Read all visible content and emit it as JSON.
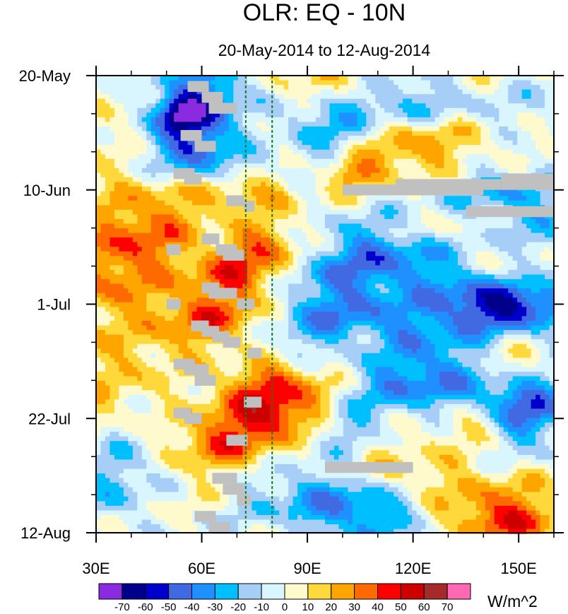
{
  "chart_data": {
    "type": "heatmap",
    "title": "OLR: EQ - 10N",
    "subtitle": "20-May-2014 to 12-Aug-2014",
    "units": "W/m^2",
    "x_range": [
      30,
      160
    ],
    "x_ticks": [
      {
        "value": 30,
        "label": "30E"
      },
      {
        "value": 60,
        "label": "60E"
      },
      {
        "value": 90,
        "label": "90E"
      },
      {
        "value": 120,
        "label": "120E"
      },
      {
        "value": 150,
        "label": "150E"
      }
    ],
    "x_minor_ticks": [
      40,
      50,
      70,
      80,
      100,
      110,
      130,
      140,
      160
    ],
    "y_range_days": [
      0,
      84
    ],
    "y_ticks": [
      {
        "value": 0,
        "label": "20-May"
      },
      {
        "value": 21,
        "label": "10-Jun"
      },
      {
        "value": 42,
        "label": "1-Jul"
      },
      {
        "value": 63,
        "label": "22-Jul"
      },
      {
        "value": 84,
        "label": "12-Aug"
      }
    ],
    "y_minor_ticks": [
      7,
      14,
      28,
      35,
      49,
      56,
      70,
      77
    ],
    "reference_lines_lon": [
      72.5,
      80
    ],
    "colorbar": {
      "levels": [
        -70,
        -60,
        -50,
        -40,
        -30,
        -20,
        -10,
        0,
        10,
        20,
        30,
        40,
        50,
        60,
        70
      ],
      "labels": [
        "-70",
        "-60",
        "-50",
        "-40",
        "-30",
        "-20",
        "-10",
        "0",
        "10",
        "20",
        "30",
        "40",
        "50",
        "60",
        "70"
      ],
      "colors": [
        "#8a2be2",
        "#00008b",
        "#0000cd",
        "#4169e1",
        "#1e90ff",
        "#00bfff",
        "#a6cef7",
        "#d9f6ff",
        "#fffacd",
        "#ffd93b",
        "#ffa500",
        "#ff6a00",
        "#ff0000",
        "#cd0000",
        "#a52a2a",
        "#ff69b4"
      ]
    },
    "missing_color": "#c0c0c0",
    "missing_blocks": [
      {
        "lon": [
          50,
          54
        ],
        "day": [
          31,
          33
        ]
      },
      {
        "lon": [
          50,
          54
        ],
        "day": [
          41,
          43
        ]
      },
      {
        "lon": [
          56,
          62
        ],
        "day": [
          1,
          3
        ]
      },
      {
        "lon": [
          60,
          66
        ],
        "day": [
          3,
          5
        ]
      },
      {
        "lon": [
          62,
          70
        ],
        "day": [
          5,
          7
        ]
      },
      {
        "lon": [
          54,
          60
        ],
        "day": [
          10,
          12
        ]
      },
      {
        "lon": [
          58,
          64
        ],
        "day": [
          12,
          14
        ]
      },
      {
        "lon": [
          52,
          58
        ],
        "day": [
          17,
          19
        ]
      },
      {
        "lon": [
          55,
          60
        ],
        "day": [
          18,
          20
        ]
      },
      {
        "lon": [
          67,
          72
        ],
        "day": [
          22,
          24
        ]
      },
      {
        "lon": [
          72,
          75
        ],
        "day": [
          23,
          25
        ]
      },
      {
        "lon": [
          60,
          65
        ],
        "day": [
          29,
          31
        ]
      },
      {
        "lon": [
          64,
          70
        ],
        "day": [
          31,
          33
        ]
      },
      {
        "lon": [
          66,
          72
        ],
        "day": [
          32,
          34
        ]
      },
      {
        "lon": [
          60,
          65
        ],
        "day": [
          38,
          40
        ]
      },
      {
        "lon": [
          62,
          70
        ],
        "day": [
          39,
          41
        ]
      },
      {
        "lon": [
          70,
          75
        ],
        "day": [
          41,
          43
        ]
      },
      {
        "lon": [
          57,
          62
        ],
        "day": [
          45,
          47
        ]
      },
      {
        "lon": [
          60,
          65
        ],
        "day": [
          46,
          48
        ]
      },
      {
        "lon": [
          63,
          68
        ],
        "day": [
          47,
          49
        ]
      },
      {
        "lon": [
          66,
          71
        ],
        "day": [
          48,
          50
        ]
      },
      {
        "lon": [
          73,
          77
        ],
        "day": [
          50,
          52
        ]
      },
      {
        "lon": [
          52,
          58
        ],
        "day": [
          52,
          54
        ]
      },
      {
        "lon": [
          55,
          62
        ],
        "day": [
          53,
          55
        ]
      },
      {
        "lon": [
          58,
          64
        ],
        "day": [
          55,
          57
        ]
      },
      {
        "lon": [
          72,
          77
        ],
        "day": [
          59,
          61
        ]
      },
      {
        "lon": [
          52,
          57
        ],
        "day": [
          61,
          63
        ]
      },
      {
        "lon": [
          55,
          60
        ],
        "day": [
          62,
          64
        ]
      },
      {
        "lon": [
          67,
          73
        ],
        "day": [
          66,
          68
        ]
      },
      {
        "lon": [
          63,
          70
        ],
        "day": [
          73,
          75
        ]
      },
      {
        "lon": [
          66,
          72
        ],
        "day": [
          75,
          77
        ]
      },
      {
        "lon": [
          70,
          74
        ],
        "day": [
          77,
          79
        ]
      },
      {
        "lon": [
          58,
          64
        ],
        "day": [
          80,
          82
        ]
      },
      {
        "lon": [
          62,
          68
        ],
        "day": [
          82,
          84
        ]
      },
      {
        "lon": [
          100,
          140
        ],
        "day": [
          20,
          22
        ]
      },
      {
        "lon": [
          115,
          145
        ],
        "day": [
          19,
          21
        ]
      },
      {
        "lon": [
          145,
          160
        ],
        "day": [
          18,
          21
        ]
      },
      {
        "lon": [
          135,
          160
        ],
        "day": [
          24,
          26
        ]
      },
      {
        "lon": [
          95,
          120
        ],
        "day": [
          71,
          73
        ]
      }
    ],
    "features": [
      {
        "kind": "warm",
        "lon": 32,
        "day": 42,
        "sx": 10,
        "sy": 22,
        "amp": 18
      },
      {
        "kind": "warm",
        "lon": 48,
        "day": 32,
        "sx": 12,
        "sy": 9,
        "amp": 28
      },
      {
        "kind": "warm",
        "lon": 78,
        "day": 31,
        "sx": 10,
        "sy": 3.5,
        "amp": 42
      },
      {
        "kind": "warm",
        "lon": 70,
        "day": 37,
        "sx": 9,
        "sy": 3,
        "amp": 34
      },
      {
        "kind": "warm",
        "lon": 66,
        "day": 45,
        "sx": 12,
        "sy": 3.5,
        "amp": 30
      },
      {
        "kind": "warm",
        "lon": 80,
        "day": 57,
        "sx": 13,
        "sy": 3.5,
        "amp": 40
      },
      {
        "kind": "warm",
        "lon": 80,
        "day": 63,
        "sx": 16,
        "sy": 2.8,
        "amp": 34
      },
      {
        "kind": "warm",
        "lon": 66,
        "day": 68,
        "sx": 12,
        "sy": 3,
        "amp": 28
      },
      {
        "kind": "warm",
        "lon": 128,
        "day": 76,
        "sx": 18,
        "sy": 5,
        "amp": 30
      },
      {
        "kind": "warm",
        "lon": 150,
        "day": 82,
        "sx": 12,
        "sy": 3,
        "amp": 38
      },
      {
        "kind": "warm",
        "lon": 120,
        "day": 13,
        "sx": 22,
        "sy": 4.5,
        "amp": 26
      },
      {
        "kind": "warm",
        "lon": 103,
        "day": 18,
        "sx": 6,
        "sy": 2,
        "amp": 30
      },
      {
        "kind": "warm",
        "lon": 95,
        "day": 1.5,
        "sx": 10,
        "sy": 2,
        "amp": 22
      },
      {
        "kind": "warm",
        "lon": 148,
        "day": 36,
        "sx": 9,
        "sy": 3,
        "amp": 28
      },
      {
        "kind": "warm",
        "lon": 105,
        "day": 49,
        "sx": 9,
        "sy": 3,
        "amp": 26
      },
      {
        "kind": "warm",
        "lon": 150,
        "day": 54,
        "sx": 9,
        "sy": 3,
        "amp": 26
      },
      {
        "kind": "warm",
        "lon": 140,
        "day": 64,
        "sx": 10,
        "sy": 3,
        "amp": 24
      },
      {
        "kind": "warm",
        "lon": 126,
        "day": 28,
        "sx": 12,
        "sy": 3,
        "amp": 22
      },
      {
        "kind": "warm",
        "lon": 75,
        "day": 22,
        "sx": 12,
        "sy": 2.2,
        "amp": 30
      },
      {
        "kind": "cold",
        "lon": 58,
        "day": 6,
        "sx": 10,
        "sy": 6,
        "amp": 48
      },
      {
        "kind": "cold",
        "lon": 54,
        "day": 7,
        "sx": 4,
        "sy": 2,
        "amp": 28
      },
      {
        "kind": "cold",
        "lon": 60,
        "day": 15,
        "sx": 9,
        "sy": 4,
        "amp": 30
      },
      {
        "kind": "cold",
        "lon": 112,
        "day": 34,
        "sx": 28,
        "sy": 6,
        "amp": 34
      },
      {
        "kind": "cold",
        "lon": 148,
        "day": 42,
        "sx": 14,
        "sy": 3.5,
        "amp": 52
      },
      {
        "kind": "cold",
        "lon": 105,
        "day": 47,
        "sx": 15,
        "sy": 4,
        "amp": 44
      },
      {
        "kind": "cold",
        "lon": 130,
        "day": 57,
        "sx": 20,
        "sy": 4.5,
        "amp": 34
      },
      {
        "kind": "cold",
        "lon": 103,
        "day": 79,
        "sx": 15,
        "sy": 4,
        "amp": 46
      },
      {
        "kind": "cold",
        "lon": 95,
        "day": 10,
        "sx": 10,
        "sy": 5,
        "amp": 24
      },
      {
        "kind": "cold",
        "lon": 150,
        "day": 22,
        "sx": 10,
        "sy": 4,
        "amp": 28
      },
      {
        "kind": "cold",
        "lon": 36,
        "day": 74,
        "sx": 8,
        "sy": 8,
        "amp": 24
      },
      {
        "kind": "cold",
        "lon": 100,
        "day": 64,
        "sx": 6,
        "sy": 2.5,
        "amp": 22
      },
      {
        "kind": "cold",
        "lon": 152,
        "day": 62,
        "sx": 8,
        "sy": 5,
        "amp": 36
      },
      {
        "kind": "cold",
        "lon": 124,
        "day": 6,
        "sx": 16,
        "sy": 3,
        "amp": 20
      }
    ]
  }
}
